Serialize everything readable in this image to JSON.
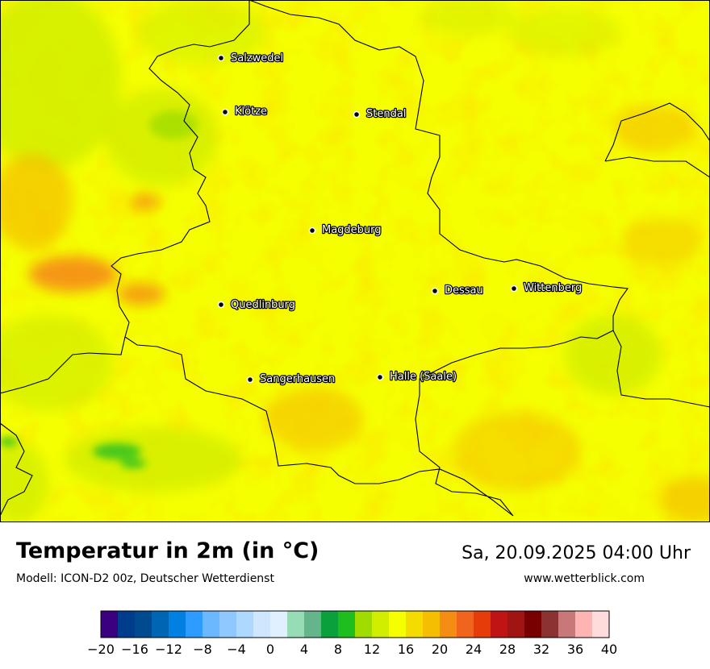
{
  "title": "Temperatur in 2m (in °C)",
  "model": "Modell: ICON-D2 00z, Deutscher Wetterdienst",
  "datetime": "Sa, 20.09.2025 04:00 Uhr",
  "website": "www.wetterblick.com",
  "cities": [
    {
      "name": "Salzwedel"
    },
    {
      "name": "Klötze"
    },
    {
      "name": "Stendal"
    },
    {
      "name": "Magdeburg"
    },
    {
      "name": "Dessau"
    },
    {
      "name": "Wittenberg"
    },
    {
      "name": "Quedlinburg"
    },
    {
      "name": "Sangerhausen"
    },
    {
      "name": "Halle (Saale)"
    }
  ],
  "legend": {
    "ticks": [
      "−20",
      "−16",
      "−12",
      "−8",
      "−4",
      "0",
      "4",
      "8",
      "12",
      "16",
      "20",
      "24",
      "28",
      "32",
      "36",
      "40"
    ],
    "colors": [
      "#3b0080",
      "#003c8c",
      "#004a8f",
      "#0066b3",
      "#0080e0",
      "#2d9bff",
      "#6cb8ff",
      "#8fc8ff",
      "#afd8ff",
      "#cfe6ff",
      "#e0f0ff",
      "#96dcb4",
      "#64b48c",
      "#0aa03c",
      "#1ebe1e",
      "#a0dc00",
      "#d2ee00",
      "#f5ff00",
      "#f5dc00",
      "#f5be00",
      "#f58c14",
      "#f0641e",
      "#e63c0a",
      "#be1414",
      "#a01414",
      "#780000",
      "#8c3232",
      "#c87878",
      "#ffb4b4",
      "#ffdcdc"
    ]
  }
}
